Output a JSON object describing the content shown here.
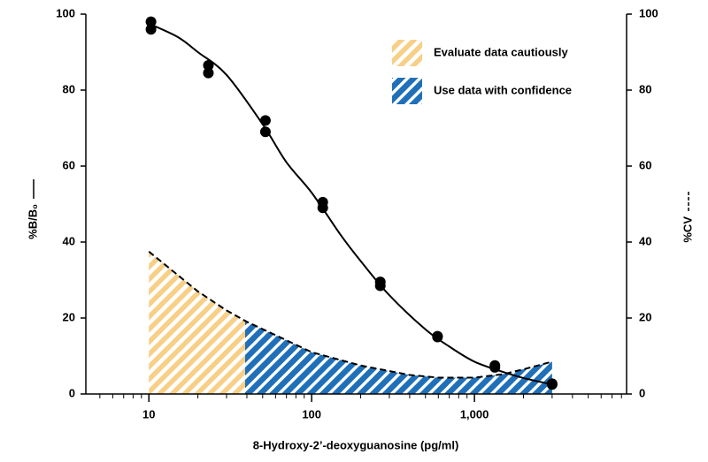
{
  "chart_data": {
    "type": "curve",
    "xlabel": "8-Hydroxy-2’-deoxyguanosine (pg/ml)",
    "ylabel": "%B/B₀",
    "y2label": "%CV",
    "xscale": "log",
    "xlim": [
      4.1,
      8600
    ],
    "xticks": [
      10,
      100,
      {
        "value": 1000,
        "label": "1,000"
      }
    ],
    "xminor": [
      5,
      6,
      7,
      8,
      9,
      20,
      30,
      40,
      50,
      60,
      70,
      80,
      90,
      200,
      300,
      400,
      500,
      600,
      700,
      800,
      900,
      2000,
      3000,
      4000,
      5000,
      6000,
      7000,
      8000
    ],
    "ylim": [
      0,
      100
    ],
    "yticks": [
      0,
      20,
      40,
      60,
      80,
      100
    ],
    "y2lim": [
      0,
      100
    ],
    "y2ticks": [
      0,
      20,
      40,
      60,
      80,
      100
    ],
    "points": {
      "color": "#000000",
      "x": [
        10.3,
        23.2,
        52,
        117,
        264,
        593,
        1335,
        3000
      ],
      "y": [
        [
          98,
          96
        ],
        [
          86.5,
          84.5
        ],
        [
          72,
          69
        ],
        [
          50.5,
          49
        ],
        [
          29.5,
          28.5
        ],
        [
          15.2,
          15
        ],
        [
          7.5,
          7
        ],
        [
          2.7,
          2.5
        ]
      ]
    },
    "fit": {
      "color": "#000000",
      "x": [
        10,
        15,
        20,
        30,
        50,
        70,
        100,
        150,
        200,
        300,
        500,
        700,
        1000,
        1500,
        2000,
        3000
      ],
      "y": [
        97.5,
        94,
        90,
        84,
        71,
        61,
        53,
        42,
        35,
        26,
        17,
        12.5,
        8.5,
        5.8,
        4.2,
        2.5
      ]
    },
    "cv": {
      "color": "#000000",
      "x": [
        10,
        20,
        30,
        40,
        60,
        100,
        200,
        400,
        600,
        1000,
        1500,
        2000,
        3000
      ],
      "y": [
        37.5,
        27,
        22,
        19,
        15.5,
        11,
        7.5,
        5,
        4.3,
        4.3,
        5.2,
        6.5,
        8.5
      ]
    },
    "regions": [
      {
        "name": "Evaluate data cautiously",
        "color": "#f7cf86",
        "xrange": [
          10,
          39
        ]
      },
      {
        "name": "Use data with confidence",
        "color": "#1f70b8",
        "xrange": [
          39,
          3000
        ]
      }
    ]
  }
}
